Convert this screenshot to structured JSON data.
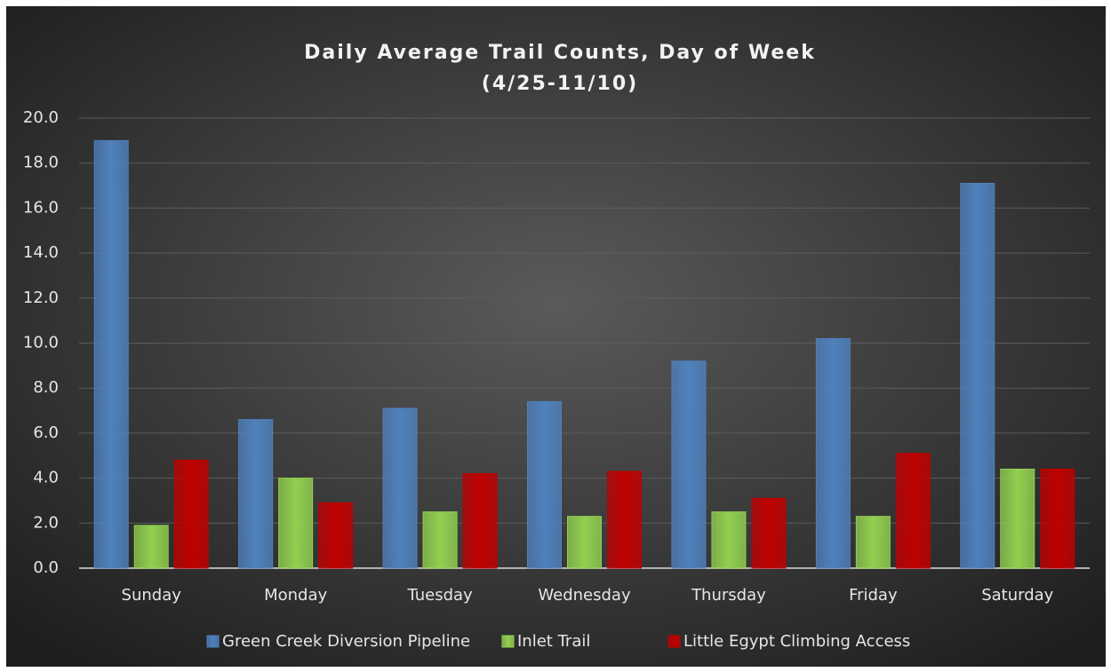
{
  "chart_data": {
    "type": "bar",
    "title": "Daily Average Trail Counts, Day of Week",
    "subtitle": "(4/25-11/10)",
    "categories": [
      "Sunday",
      "Monday",
      "Tuesday",
      "Wednesday",
      "Thursday",
      "Friday",
      "Saturday"
    ],
    "series": [
      {
        "name": "Green Creek Diversion Pipeline",
        "color": "#4f81bd",
        "values": [
          19.0,
          6.6,
          7.1,
          7.4,
          9.2,
          10.2,
          17.1
        ]
      },
      {
        "name": "Inlet Trail",
        "color": "#92d050",
        "values": [
          1.9,
          4.0,
          2.5,
          2.3,
          2.5,
          2.3,
          4.4
        ]
      },
      {
        "name": "Little Egypt Climbing Access",
        "color": "#c00000",
        "values": [
          4.8,
          2.9,
          4.2,
          4.3,
          3.1,
          5.1,
          4.4
        ]
      }
    ],
    "ylim": [
      0,
      20
    ],
    "yticks": [
      {
        "value": 0,
        "label": "0.0"
      },
      {
        "value": 2,
        "label": "2.0"
      },
      {
        "value": 4,
        "label": "4.0"
      },
      {
        "value": 6,
        "label": "6.0"
      },
      {
        "value": 8,
        "label": "8.0"
      },
      {
        "value": 10,
        "label": "10.0"
      },
      {
        "value": 12,
        "label": "12.0"
      },
      {
        "value": 14,
        "label": "14.0"
      },
      {
        "value": 16,
        "label": "16.0"
      },
      {
        "value": 18,
        "label": "18.0"
      },
      {
        "value": 20,
        "label": "20.0"
      }
    ],
    "grid": true,
    "legend": "bottom"
  }
}
